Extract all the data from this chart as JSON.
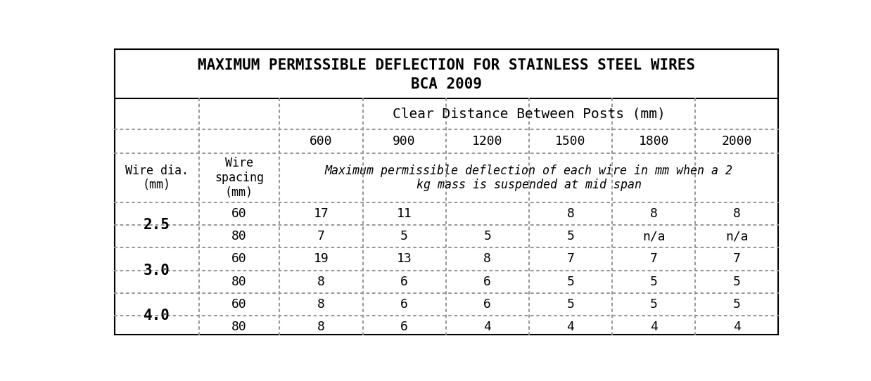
{
  "title_line1": "MAXIMUM PERMISSIBLE DEFLECTION FOR STAINLESS STEEL WIRES",
  "title_line2": "BCA 2009",
  "col_header1": "Clear Distance Between Posts (mm)",
  "col_header2_distances": [
    "600",
    "900",
    "1200",
    "1500",
    "1800",
    "2000"
  ],
  "row_header1": "Wire dia.\n(mm)",
  "row_header2": "Wire\nspacing\n(mm)",
  "description": "Maximum permissible deflection of each wire in mm when a 2\nkg mass is suspended at mid span",
  "wire_diameters": [
    "2.5",
    "3.0",
    "4.0"
  ],
  "spacings": [
    [
      "60",
      "80"
    ],
    [
      "60",
      "80"
    ],
    [
      "60",
      "80"
    ]
  ],
  "values": [
    [
      [
        "17",
        "11",
        "",
        "8",
        "8",
        "8"
      ],
      [
        "7",
        "5",
        "5",
        "5",
        "n/a",
        "n/a"
      ]
    ],
    [
      [
        "19",
        "13",
        "8",
        "7",
        "7",
        "7"
      ],
      [
        "8",
        "6",
        "6",
        "5",
        "5",
        "5"
      ]
    ],
    [
      [
        "8",
        "6",
        "6",
        "5",
        "5",
        "5"
      ],
      [
        "8",
        "6",
        "4",
        "4",
        "4",
        "4"
      ]
    ]
  ],
  "bg_color": "#ffffff",
  "title_fontsize": 15,
  "header_fontsize": 13,
  "data_fontsize": 13,
  "label_fontsize": 12,
  "desc_fontsize": 12,
  "dist_header_fontsize": 14,
  "dia_fontsize": 15
}
